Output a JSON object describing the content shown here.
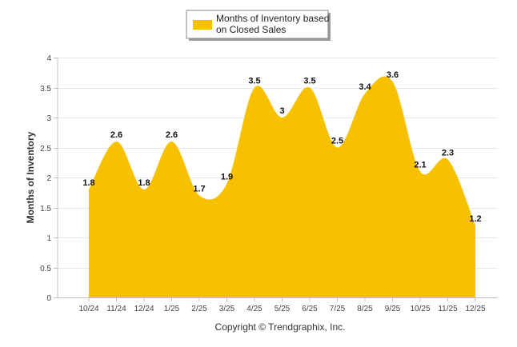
{
  "chart_data": {
    "type": "area",
    "categories": [
      "10/24",
      "11/24",
      "12/24",
      "1/25",
      "2/25",
      "3/25",
      "4/25",
      "5/25",
      "6/25",
      "7/25",
      "8/25",
      "9/25",
      "10/25",
      "11/25",
      "12/25"
    ],
    "series": [
      {
        "name": "Months of Inventory based on Closed Sales",
        "values": [
          1.8,
          2.6,
          1.8,
          2.6,
          1.7,
          1.9,
          3.5,
          3,
          3.5,
          2.5,
          3.4,
          3.6,
          2.1,
          2.3,
          1.2
        ],
        "color": "#f7c100"
      }
    ],
    "data_labels": [
      "1.8",
      "2.6",
      "1.8",
      "2.6",
      "1.7",
      "1.9",
      "3.5",
      "3",
      "3.5",
      "2.5",
      "3.4",
      "3.6",
      "2.1",
      "2.3",
      "1.2"
    ],
    "y_ticks": [
      "0",
      "0.5",
      "1",
      "1.5",
      "2",
      "2.5",
      "3",
      "3.5",
      "4"
    ],
    "ylim": [
      0,
      4
    ],
    "xlabel": "",
    "ylabel": "Months of Inventory",
    "legend": {
      "lines": [
        "Months of Inventory based",
        "on Closed Sales"
      ],
      "placement": "top-center"
    },
    "grid": true
  },
  "footer": {
    "copyright": "Copyright © Trendgraphix, Inc."
  },
  "colors": {
    "area": "#f7c100",
    "grid": "#e6e6e6",
    "axis": "#c0c0c0"
  }
}
